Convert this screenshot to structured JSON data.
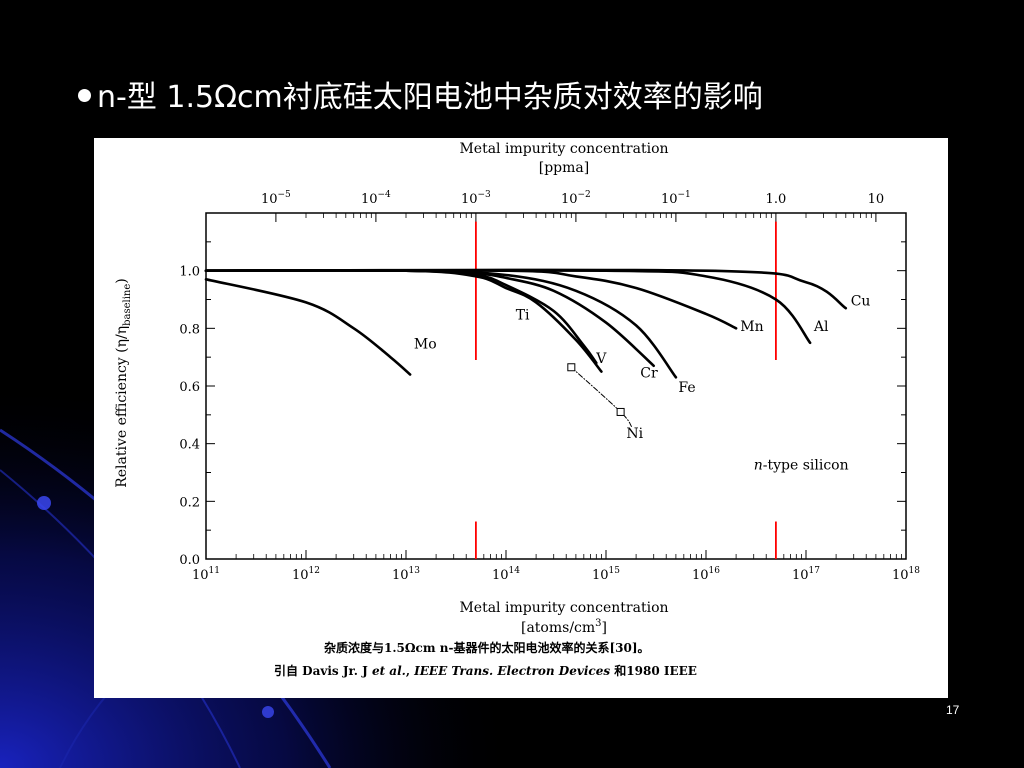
{
  "slide": {
    "title_prefix": "n-型 1.5",
    "title_omega": "Ω",
    "title_suffix": "cm衬底硅太阳电池中杂质对效率的影响",
    "page_number": "17"
  },
  "chart_data": {
    "type": "line",
    "top_axis": {
      "label_line1": "Metal impurity concentration",
      "label_line2": "[ppma]",
      "ticks": [
        {
          "base": "10",
          "exp": "−5",
          "value": 1e-05
        },
        {
          "base": "10",
          "exp": "−4",
          "value": 0.0001
        },
        {
          "base": "10",
          "exp": "−3",
          "value": 0.001
        },
        {
          "base": "10",
          "exp": "−2",
          "value": 0.01
        },
        {
          "base": "10",
          "exp": "−1",
          "value": 0.1
        },
        {
          "base": "1.0",
          "exp": "",
          "value": 1
        },
        {
          "base": "10",
          "exp": "",
          "value": 10
        }
      ]
    },
    "x_axis": {
      "label_line1": "Metal impurity concentration",
      "label_line2": "[atoms/cm",
      "label_sup": "3",
      "label_end": "]",
      "scale": "log",
      "range": [
        100000000000.0,
        1e+18
      ],
      "ticks": [
        {
          "base": "10",
          "exp": "11",
          "value": 100000000000.0
        },
        {
          "base": "10",
          "exp": "12",
          "value": 1000000000000.0
        },
        {
          "base": "10",
          "exp": "13",
          "value": 10000000000000.0
        },
        {
          "base": "10",
          "exp": "14",
          "value": 100000000000000.0
        },
        {
          "base": "10",
          "exp": "15",
          "value": 1000000000000000.0
        },
        {
          "base": "10",
          "exp": "16",
          "value": 1e+16
        },
        {
          "base": "10",
          "exp": "17",
          "value": 1e+17
        },
        {
          "base": "10",
          "exp": "18",
          "value": 1e+18
        }
      ]
    },
    "y_axis": {
      "label_main": "Relative efficiency (η/η",
      "label_sub": "baseline",
      "label_end": ")",
      "range": [
        0,
        1.2
      ],
      "ticks": [
        {
          "label": "0.0",
          "value": 0
        },
        {
          "label": "0.2",
          "value": 0.2
        },
        {
          "label": "0.4",
          "value": 0.4
        },
        {
          "label": "0.6",
          "value": 0.6
        },
        {
          "label": "0.8",
          "value": 0.8
        },
        {
          "label": "1.0",
          "value": 1.0
        }
      ]
    },
    "reference_lines": [
      {
        "x": 50000000000000.0,
        "color": "#ff0000"
      },
      {
        "x": 5e+16,
        "color": "#ff0000"
      }
    ],
    "series": [
      {
        "name": "Mo",
        "points": [
          [
            100000000000.0,
            0.97
          ],
          [
            1000000000000.0,
            0.89
          ],
          [
            3000000000000.0,
            0.8
          ],
          [
            7000000000000.0,
            0.7
          ],
          [
            11000000000000.0,
            0.64
          ]
        ]
      },
      {
        "name": "Ti",
        "points": [
          [
            100000000000.0,
            1.0
          ],
          [
            10000000000000.0,
            1.0
          ],
          [
            50000000000000.0,
            0.98
          ],
          [
            100000000000000.0,
            0.94
          ],
          [
            200000000000000.0,
            0.89
          ],
          [
            500000000000000.0,
            0.76
          ],
          [
            900000000000000.0,
            0.65
          ]
        ]
      },
      {
        "name": "V",
        "points": [
          [
            100000000000.0,
            1.0
          ],
          [
            10000000000000.0,
            1.0
          ],
          [
            50000000000000.0,
            0.985
          ],
          [
            100000000000000.0,
            0.95
          ],
          [
            300000000000000.0,
            0.86
          ],
          [
            600000000000000.0,
            0.74
          ],
          [
            800000000000000.0,
            0.68
          ]
        ]
      },
      {
        "name": "Cr",
        "points": [
          [
            100000000000.0,
            1.0
          ],
          [
            10000000000000.0,
            1.0
          ],
          [
            50000000000000.0,
            0.99
          ],
          [
            100000000000000.0,
            0.975
          ],
          [
            300000000000000.0,
            0.93
          ],
          [
            1000000000000000.0,
            0.82
          ],
          [
            3000000000000000.0,
            0.67
          ]
        ]
      },
      {
        "name": "Fe",
        "points": [
          [
            100000000000.0,
            1.0
          ],
          [
            10000000000000.0,
            1.0
          ],
          [
            100000000000000.0,
            0.985
          ],
          [
            500000000000000.0,
            0.93
          ],
          [
            2000000000000000.0,
            0.81
          ],
          [
            5000000000000000.0,
            0.63
          ]
        ]
      },
      {
        "name": "Mn",
        "points": [
          [
            100000000000.0,
            1.0
          ],
          [
            100000000000000.0,
            1.0
          ],
          [
            500000000000000.0,
            0.98
          ],
          [
            2000000000000000.0,
            0.94
          ],
          [
            1e+16,
            0.85
          ],
          [
            2e+16,
            0.8
          ]
        ]
      },
      {
        "name": "Al",
        "points": [
          [
            100000000000.0,
            1.0
          ],
          [
            1000000000000000.0,
            1.0
          ],
          [
            1e+16,
            0.98
          ],
          [
            5e+16,
            0.9
          ],
          [
            1.1e+17,
            0.75
          ]
        ]
      },
      {
        "name": "Cu",
        "points": [
          [
            100000000000.0,
            1.0
          ],
          [
            1e+16,
            1.0
          ],
          [
            1e+17,
            0.96
          ],
          [
            2.5e+17,
            0.87
          ]
        ]
      },
      {
        "name": "Ni",
        "dashed": true,
        "points": [
          [
            450000000000000.0,
            0.665
          ],
          [
            1400000000000000.0,
            0.51
          ],
          [
            1800000000000000.0,
            0.46
          ]
        ],
        "markers": [
          [
            450000000000000.0,
            0.665
          ],
          [
            1400000000000000.0,
            0.51
          ]
        ]
      }
    ],
    "series_labels": [
      {
        "name": "Mo",
        "x": 12000000000000.0,
        "y": 0.73
      },
      {
        "name": "Ti",
        "x": 125000000000000.0,
        "y": 0.83
      },
      {
        "name": "V",
        "x": 800000000000000.0,
        "y": 0.68
      },
      {
        "name": "Cr",
        "x": 2200000000000000.0,
        "y": 0.63
      },
      {
        "name": "Fe",
        "x": 5300000000000000.0,
        "y": 0.58
      },
      {
        "name": "Mn",
        "x": 2.2e+16,
        "y": 0.79
      },
      {
        "name": "Al",
        "x": 1.2e+17,
        "y": 0.79
      },
      {
        "name": "Cu",
        "x": 2.8e+17,
        "y": 0.88
      },
      {
        "name": "Ni",
        "x": 1600000000000000.0,
        "y": 0.42
      }
    ],
    "annotation": {
      "italic": "n",
      "text": "-type silicon",
      "x": 3e+16,
      "y": 0.31
    },
    "grid": false
  },
  "caption": {
    "line1": "杂质浓度与1.5Ωcm n-基器件的太阳电池效率的关系[30]。",
    "line2_prefix": "引自  Davis Jr. J ",
    "line2_italic1": "et al.",
    "line2_mid": ", ",
    "line2_italic2": "IEEE Trans. Electron Devices",
    "line2_suffix": "  和1980 IEEE"
  },
  "colors": {
    "background": "#000000",
    "deco_blue": "#1a24c8",
    "reference_line": "#ff0000",
    "curve": "#000000",
    "text": "#ffffff"
  }
}
